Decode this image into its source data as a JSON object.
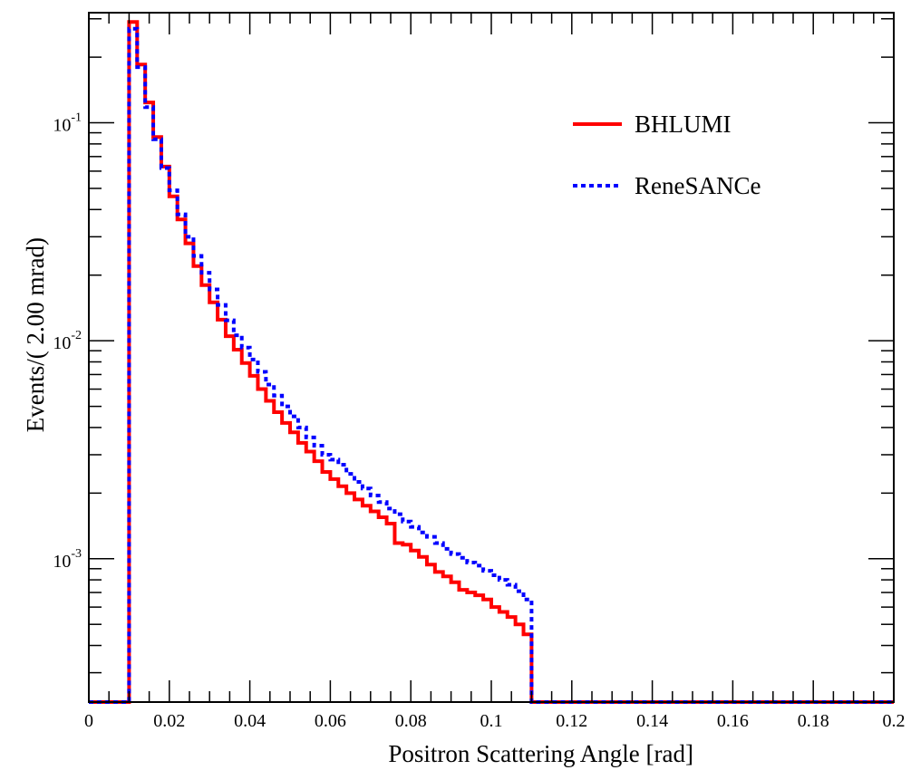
{
  "chart_data": {
    "type": "line",
    "xlabel": "Positron Scattering Angle [rad]",
    "ylabel": "Events/( 2.00 mrad)",
    "xlim": [
      0,
      0.2
    ],
    "ylim": [
      0.00022,
      0.32
    ],
    "y_scale": "log",
    "grid": false,
    "legend_position": "top-right",
    "x_ticks": [
      0,
      0.02,
      0.04,
      0.06,
      0.08,
      0.1,
      0.12,
      0.14,
      0.16,
      0.18,
      0.2
    ],
    "x_tick_labels": [
      "0",
      "0.02",
      "0.04",
      "0.06",
      "0.08",
      "0.1",
      "0.12",
      "0.14",
      "0.16",
      "0.18",
      "0.2"
    ],
    "y_ticks": [
      0.1,
      0.01,
      0.001
    ],
    "y_tick_labels": [
      {
        "base": "10",
        "exp": "-1"
      },
      {
        "base": "10",
        "exp": "-2"
      },
      {
        "base": "10",
        "exp": "-3"
      }
    ],
    "bin_edges_start": 0.01,
    "bin_width": 0.002,
    "series": [
      {
        "name": "BHLUMI",
        "color": "#ff0000",
        "style": "solid",
        "values": [
          0.29,
          0.185,
          0.124,
          0.086,
          0.063,
          0.046,
          0.036,
          0.028,
          0.022,
          0.018,
          0.015,
          0.0125,
          0.0105,
          0.0091,
          0.0079,
          0.0069,
          0.006,
          0.0053,
          0.0047,
          0.0042,
          0.0038,
          0.0034,
          0.0031,
          0.0028,
          0.0025,
          0.00232,
          0.00215,
          0.002,
          0.00187,
          0.00175,
          0.00165,
          0.00155,
          0.00145,
          0.00118,
          0.00116,
          0.00109,
          0.00102,
          0.00094,
          0.00087,
          0.00083,
          0.00078,
          0.00072,
          0.0007,
          0.00068,
          0.00065,
          0.0006,
          0.00057,
          0.00054,
          0.0005,
          0.00045
        ]
      },
      {
        "name": "ReneSANCe",
        "color": "#0000ff",
        "style": "dotted",
        "values": [
          0.27,
          0.18,
          0.118,
          0.084,
          0.062,
          0.049,
          0.038,
          0.03,
          0.0245,
          0.0205,
          0.0172,
          0.0146,
          0.0124,
          0.0106,
          0.0093,
          0.0082,
          0.0072,
          0.0063,
          0.0056,
          0.005,
          0.0045,
          0.004,
          0.0036,
          0.0033,
          0.003,
          0.00285,
          0.0027,
          0.00245,
          0.00225,
          0.0021,
          0.00195,
          0.00182,
          0.0017,
          0.0016,
          0.00148,
          0.0014,
          0.00132,
          0.00126,
          0.00118,
          0.00111,
          0.00105,
          0.00101,
          0.00096,
          0.00093,
          0.00088,
          0.00084,
          0.0008,
          0.00076,
          0.00071,
          0.00065
        ]
      }
    ]
  }
}
